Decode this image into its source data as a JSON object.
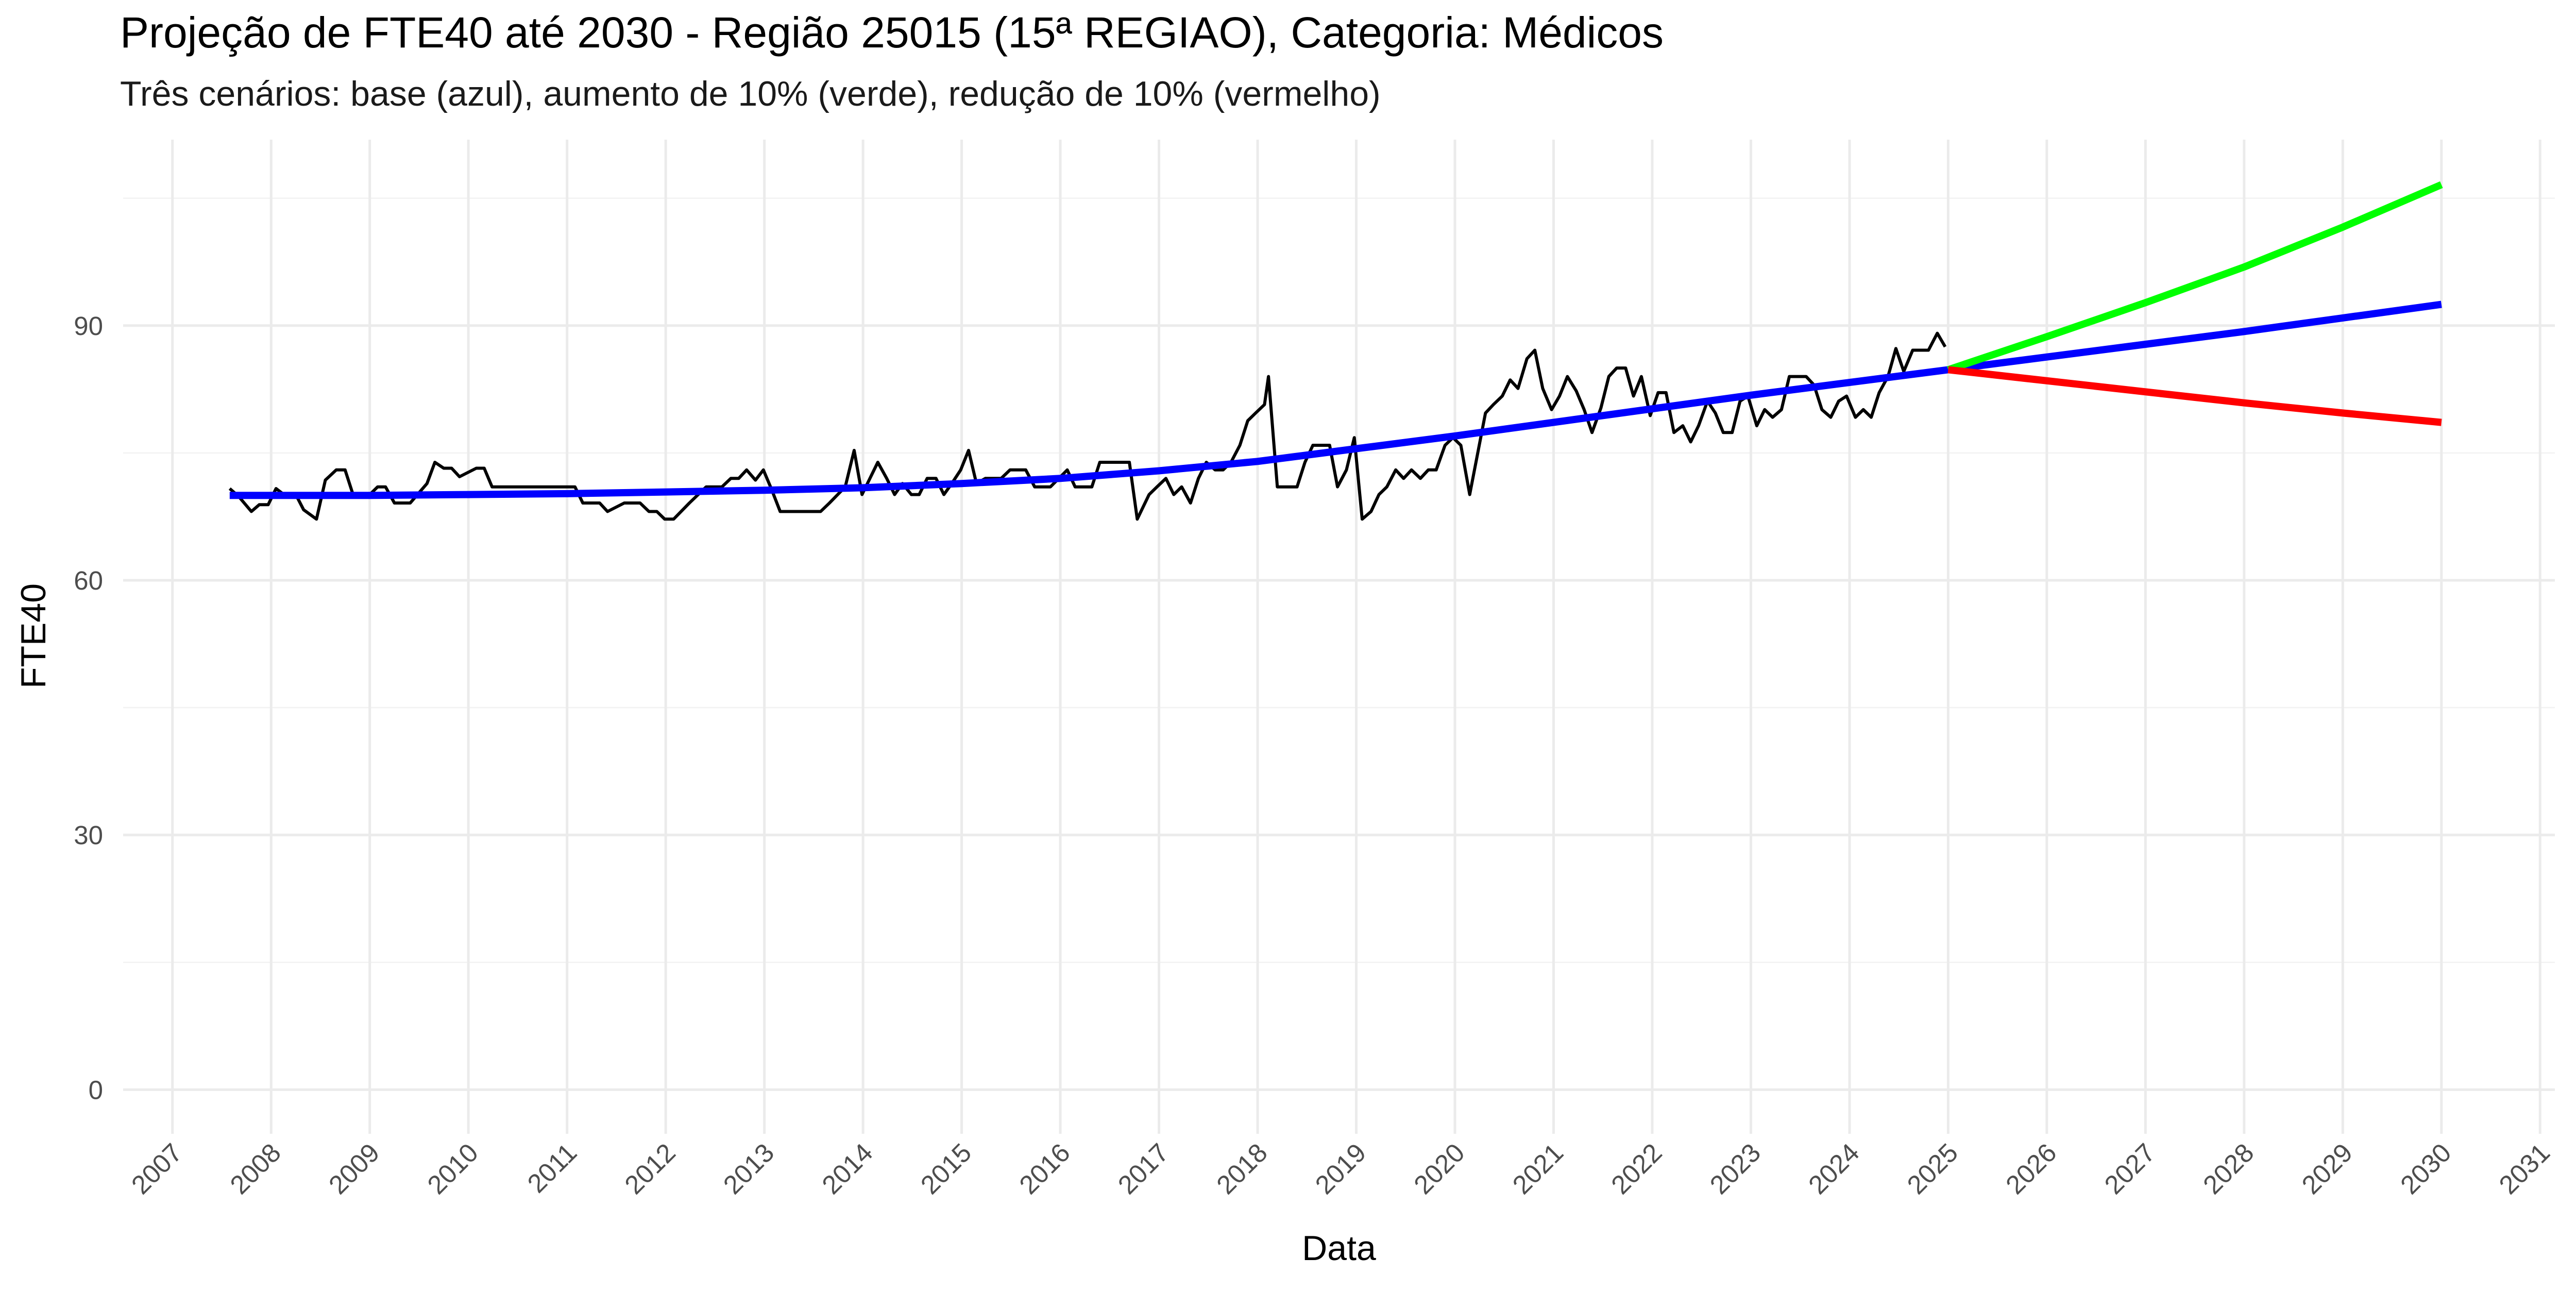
{
  "chart_data": {
    "type": "line",
    "title": "Projeção de FTE40 até 2030 - Região 25015 (15ª REGIAO), Categoria: Médicos",
    "subtitle": "Três cenários: base (azul), aumento de 10% (verde), redução de 10% (vermelho)",
    "x_label": "Data",
    "y_label": "FTE40",
    "xlim": [
      2006.5,
      2031.15
    ],
    "xticks": [
      2007,
      2008,
      2009,
      2010,
      2011,
      2012,
      2013,
      2014,
      2015,
      2016,
      2017,
      2018,
      2019,
      2020,
      2021,
      2022,
      2023,
      2024,
      2025,
      2026,
      2027,
      2028,
      2029,
      2030,
      2031
    ],
    "ylim": [
      -5.2,
      111.9
    ],
    "yticks": [
      0,
      30,
      60,
      90
    ],
    "y_minor_ticks": [
      15,
      45,
      75,
      105
    ],
    "grid": true,
    "series": [
      {
        "color": "#000000",
        "x": [
          2007.58,
          2007.67,
          2007.8,
          2007.88,
          2007.97,
          2008.05,
          2008.13,
          2008.25,
          2008.33,
          2008.46,
          2008.55,
          2008.66,
          2008.75,
          2008.83,
          2009.0,
          2009.08,
          2009.16,
          2009.25,
          2009.41,
          2009.58,
          2009.66,
          2009.75,
          2009.83,
          2009.91,
          2010.08,
          2010.16,
          2010.24,
          2010.41,
          2011.08,
          2011.16,
          2011.33,
          2011.41,
          2011.58,
          2011.74,
          2011.83,
          2011.91,
          2011.99,
          2012.08,
          2012.24,
          2012.41,
          2012.57,
          2012.66,
          2012.74,
          2012.82,
          2012.91,
          2012.99,
          2013.07,
          2013.16,
          2013.57,
          2013.66,
          2013.82,
          2013.91,
          2013.99,
          2014.07,
          2014.15,
          2014.24,
          2014.32,
          2014.4,
          2014.49,
          2014.57,
          2014.65,
          2014.74,
          2014.82,
          2014.9,
          2014.99,
          2015.07,
          2015.15,
          2015.24,
          2015.4,
          2015.49,
          2015.65,
          2015.74,
          2015.9,
          2016.07,
          2016.15,
          2016.32,
          2016.4,
          2016.7,
          2016.78,
          2016.9,
          2016.98,
          2017.07,
          2017.15,
          2017.23,
          2017.32,
          2017.4,
          2017.48,
          2017.57,
          2017.65,
          2017.73,
          2017.82,
          2017.9,
          2017.98,
          2018.07,
          2018.11,
          2018.2,
          2018.4,
          2018.48,
          2018.56,
          2018.73,
          2018.81,
          2018.9,
          2018.98,
          2019.06,
          2019.15,
          2019.23,
          2019.31,
          2019.4,
          2019.48,
          2019.56,
          2019.65,
          2019.73,
          2019.81,
          2019.9,
          2019.98,
          2020.06,
          2020.15,
          2020.31,
          2020.39,
          2020.48,
          2020.56,
          2020.64,
          2020.73,
          2020.81,
          2020.89,
          2020.98,
          2021.06,
          2021.14,
          2021.23,
          2021.31,
          2021.39,
          2021.48,
          2021.56,
          2021.64,
          2021.73,
          2021.81,
          2021.89,
          2021.98,
          2022.06,
          2022.14,
          2022.22,
          2022.31,
          2022.39,
          2022.47,
          2022.56,
          2022.64,
          2022.72,
          2022.81,
          2022.89,
          2022.97,
          2023.06,
          2023.14,
          2023.22,
          2023.31,
          2023.39,
          2023.56,
          2023.64,
          2023.72,
          2023.81,
          2023.89,
          2023.97,
          2024.06,
          2024.14,
          2024.22,
          2024.3,
          2024.39,
          2024.47,
          2024.55,
          2024.64,
          2024.8,
          2024.89,
          2024.97
        ],
        "values": [
          70.8,
          69.9,
          68.1,
          68.9,
          68.9,
          70.8,
          70.1,
          70.1,
          68.3,
          67.2,
          71.8,
          73.0,
          73.0,
          70.1,
          70.1,
          71.0,
          71.0,
          69.1,
          69.1,
          71.4,
          73.9,
          73.2,
          73.2,
          72.2,
          73.2,
          73.2,
          71.0,
          71.0,
          71.0,
          69.1,
          69.1,
          68.1,
          69.1,
          69.1,
          68.1,
          68.1,
          67.2,
          67.2,
          69.1,
          71.0,
          71.0,
          72.0,
          72.0,
          73.0,
          71.8,
          73.0,
          70.8,
          68.1,
          68.1,
          69.1,
          71.0,
          75.3,
          70.1,
          72.0,
          73.9,
          72.0,
          70.1,
          71.4,
          70.1,
          70.1,
          72.0,
          72.0,
          70.1,
          71.4,
          73.0,
          75.3,
          71.4,
          72.0,
          72.0,
          73.0,
          73.0,
          71.0,
          71.0,
          73.0,
          71.0,
          71.0,
          73.9,
          73.9,
          67.2,
          70.1,
          71.0,
          72.0,
          70.1,
          71.0,
          69.1,
          72.0,
          73.9,
          73.0,
          73.0,
          73.9,
          75.9,
          78.8,
          79.7,
          80.7,
          84.0,
          71.0,
          71.0,
          73.9,
          75.9,
          75.9,
          71.0,
          73.0,
          76.8,
          67.2,
          68.1,
          70.1,
          71.0,
          73.0,
          72.0,
          73.0,
          72.0,
          73.0,
          73.0,
          75.9,
          76.8,
          75.9,
          70.1,
          79.7,
          80.7,
          81.7,
          83.6,
          82.6,
          86.1,
          87.1,
          82.6,
          80.1,
          81.7,
          84.0,
          82.3,
          80.1,
          77.4,
          80.3,
          84.0,
          85.0,
          85.0,
          81.7,
          84.0,
          79.4,
          82.1,
          82.1,
          77.4,
          78.2,
          76.3,
          78.2,
          81.1,
          79.7,
          77.4,
          77.4,
          81.1,
          81.7,
          78.2,
          80.1,
          79.2,
          80.1,
          84.0,
          84.0,
          83.0,
          80.1,
          79.2,
          81.1,
          81.7,
          79.2,
          80.1,
          79.2,
          82.1,
          84.0,
          87.3,
          84.6,
          87.1,
          87.1,
          89.1,
          87.5
        ]
      },
      {
        "color": "#0000ff",
        "x": [
          2007.58,
          2009,
          2010,
          2011,
          2012,
          2013,
          2014,
          2015,
          2016,
          2017,
          2018,
          2019,
          2020,
          2021,
          2022,
          2023,
          2024,
          2025,
          2026,
          2027,
          2028,
          2029,
          2030
        ],
        "values": [
          70.0,
          70.0,
          70.1,
          70.2,
          70.4,
          70.6,
          70.9,
          71.4,
          72.0,
          72.9,
          74.0,
          75.5,
          77.0,
          78.6,
          80.2,
          81.8,
          83.3,
          84.8,
          86.3,
          87.8,
          89.3,
          90.9,
          92.5
        ]
      },
      {
        "color": "#00ff00",
        "x": [
          2025,
          2026,
          2027,
          2028,
          2029,
          2030
        ],
        "values": [
          84.8,
          88.7,
          92.7,
          96.9,
          101.6,
          106.6
        ]
      },
      {
        "color": "#ff0000",
        "x": [
          2025,
          2026,
          2027,
          2028,
          2029,
          2030
        ],
        "values": [
          84.8,
          83.5,
          82.2,
          80.9,
          79.7,
          78.6
        ]
      }
    ]
  }
}
